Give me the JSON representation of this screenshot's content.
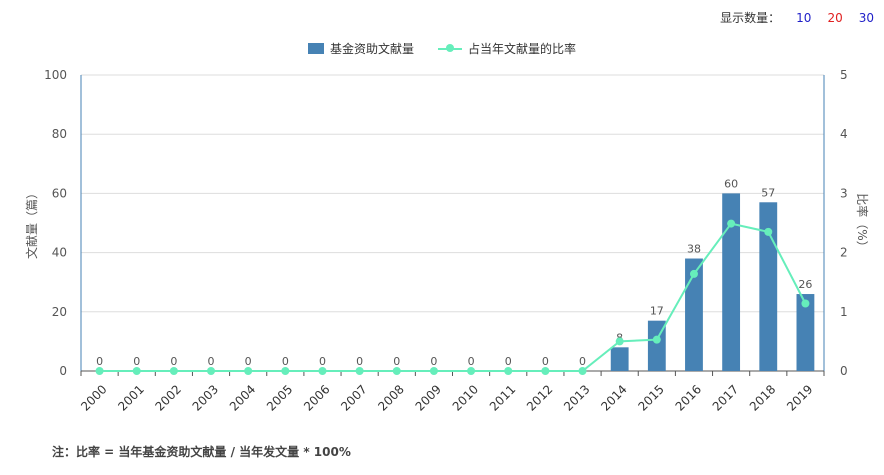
{
  "display_count": {
    "label": "显示数量：",
    "options": [
      "10",
      "20",
      "30"
    ],
    "option_colors": [
      "#1f1fc8",
      "#e02020",
      "#1f1fc8"
    ]
  },
  "chart_data": {
    "type": "bar",
    "categories": [
      "2000",
      "2001",
      "2002",
      "2003",
      "2004",
      "2005",
      "2006",
      "2007",
      "2008",
      "2009",
      "2010",
      "2011",
      "2012",
      "2013",
      "2014",
      "2015",
      "2016",
      "2017",
      "2018",
      "2019"
    ],
    "series": [
      {
        "name": "基金资助文献量",
        "type": "bar",
        "axis": "left",
        "color": "#4682b4",
        "values": [
          0,
          0,
          0,
          0,
          0,
          0,
          0,
          0,
          0,
          0,
          0,
          0,
          0,
          0,
          8,
          17,
          38,
          60,
          57,
          26
        ]
      },
      {
        "name": "占当年文献量的比率",
        "type": "line",
        "axis": "right",
        "color": "#66eebb",
        "values": [
          0,
          0,
          0,
          0,
          0,
          0,
          0,
          0,
          0,
          0,
          0,
          0,
          0,
          0,
          0.5,
          0.53,
          1.64,
          2.49,
          2.35,
          1.14
        ]
      }
    ],
    "ylabel": "文献量（篇）",
    "ylim": [
      0,
      100
    ],
    "yticks": [
      0,
      20,
      40,
      60,
      80,
      100
    ],
    "y2label": "比率（%）",
    "y2lim": [
      0,
      5
    ],
    "y2ticks": [
      0,
      1,
      2,
      3,
      4,
      5
    ],
    "grid": true,
    "legend_position": "top-center"
  },
  "footnote": "注：比率 = 当年基金资助文献量 / 当年发文量 * 100%"
}
